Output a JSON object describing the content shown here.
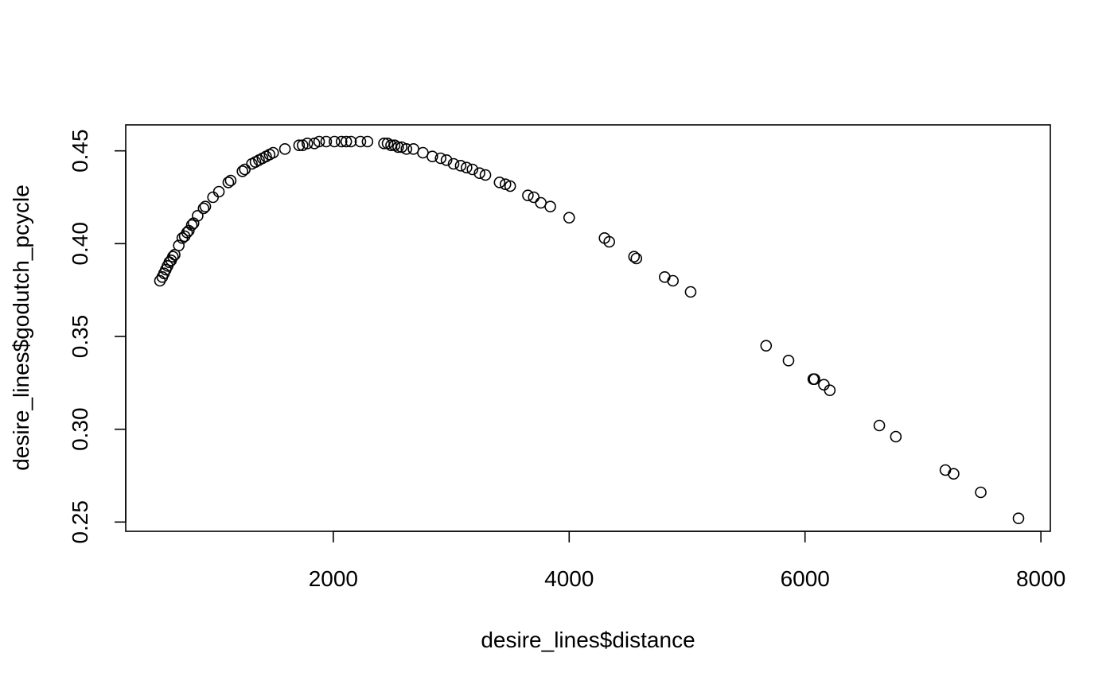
{
  "chart_data": {
    "type": "scatter",
    "title": "",
    "xlabel": "desire_lines$distance",
    "ylabel": "desire_lines$godutch_pcycle",
    "xlim": [
      240,
      8080
    ],
    "ylim": [
      0.245,
      0.464
    ],
    "x_ticks": [
      {
        "value": 2000,
        "label": "2000"
      },
      {
        "value": 4000,
        "label": "4000"
      },
      {
        "value": 6000,
        "label": "6000"
      },
      {
        "value": 8000,
        "label": "8000"
      }
    ],
    "y_ticks": [
      {
        "value": 0.25,
        "label": "0.25"
      },
      {
        "value": 0.3,
        "label": "0.30"
      },
      {
        "value": 0.35,
        "label": "0.35"
      },
      {
        "value": 0.4,
        "label": "0.40"
      },
      {
        "value": 0.45,
        "label": "0.45"
      }
    ],
    "grid": false,
    "legend": "none",
    "marker": "open-circle",
    "colors": {
      "points": "#000000",
      "axes": "#000000",
      "background": "#ffffff"
    },
    "points": [
      {
        "x": 530,
        "y": 0.38
      },
      {
        "x": 550,
        "y": 0.382
      },
      {
        "x": 565,
        "y": 0.384
      },
      {
        "x": 580,
        "y": 0.386
      },
      {
        "x": 595,
        "y": 0.388
      },
      {
        "x": 610,
        "y": 0.39
      },
      {
        "x": 625,
        "y": 0.391
      },
      {
        "x": 640,
        "y": 0.393
      },
      {
        "x": 655,
        "y": 0.394
      },
      {
        "x": 690,
        "y": 0.399
      },
      {
        "x": 720,
        "y": 0.403
      },
      {
        "x": 740,
        "y": 0.404
      },
      {
        "x": 760,
        "y": 0.406
      },
      {
        "x": 775,
        "y": 0.407
      },
      {
        "x": 800,
        "y": 0.41
      },
      {
        "x": 815,
        "y": 0.411
      },
      {
        "x": 850,
        "y": 0.415
      },
      {
        "x": 900,
        "y": 0.419
      },
      {
        "x": 915,
        "y": 0.42
      },
      {
        "x": 980,
        "y": 0.425
      },
      {
        "x": 1030,
        "y": 0.428
      },
      {
        "x": 1110,
        "y": 0.433
      },
      {
        "x": 1130,
        "y": 0.434
      },
      {
        "x": 1230,
        "y": 0.439
      },
      {
        "x": 1250,
        "y": 0.44
      },
      {
        "x": 1310,
        "y": 0.443
      },
      {
        "x": 1340,
        "y": 0.444
      },
      {
        "x": 1370,
        "y": 0.445
      },
      {
        "x": 1400,
        "y": 0.446
      },
      {
        "x": 1430,
        "y": 0.447
      },
      {
        "x": 1460,
        "y": 0.448
      },
      {
        "x": 1490,
        "y": 0.449
      },
      {
        "x": 1590,
        "y": 0.451
      },
      {
        "x": 1710,
        "y": 0.453
      },
      {
        "x": 1740,
        "y": 0.453
      },
      {
        "x": 1780,
        "y": 0.454
      },
      {
        "x": 1840,
        "y": 0.454
      },
      {
        "x": 1880,
        "y": 0.455
      },
      {
        "x": 1940,
        "y": 0.455
      },
      {
        "x": 2010,
        "y": 0.455
      },
      {
        "x": 2070,
        "y": 0.455
      },
      {
        "x": 2110,
        "y": 0.455
      },
      {
        "x": 2150,
        "y": 0.455
      },
      {
        "x": 2230,
        "y": 0.455
      },
      {
        "x": 2290,
        "y": 0.455
      },
      {
        "x": 2430,
        "y": 0.454
      },
      {
        "x": 2460,
        "y": 0.454
      },
      {
        "x": 2490,
        "y": 0.453
      },
      {
        "x": 2520,
        "y": 0.453
      },
      {
        "x": 2550,
        "y": 0.452
      },
      {
        "x": 2580,
        "y": 0.452
      },
      {
        "x": 2620,
        "y": 0.451
      },
      {
        "x": 2680,
        "y": 0.451
      },
      {
        "x": 2760,
        "y": 0.449
      },
      {
        "x": 2840,
        "y": 0.447
      },
      {
        "x": 2910,
        "y": 0.446
      },
      {
        "x": 2960,
        "y": 0.445
      },
      {
        "x": 3020,
        "y": 0.443
      },
      {
        "x": 3080,
        "y": 0.442
      },
      {
        "x": 3130,
        "y": 0.441
      },
      {
        "x": 3180,
        "y": 0.44
      },
      {
        "x": 3240,
        "y": 0.438
      },
      {
        "x": 3290,
        "y": 0.437
      },
      {
        "x": 3410,
        "y": 0.433
      },
      {
        "x": 3460,
        "y": 0.432
      },
      {
        "x": 3500,
        "y": 0.431
      },
      {
        "x": 3650,
        "y": 0.426
      },
      {
        "x": 3700,
        "y": 0.425
      },
      {
        "x": 3760,
        "y": 0.422
      },
      {
        "x": 3840,
        "y": 0.42
      },
      {
        "x": 4000,
        "y": 0.414
      },
      {
        "x": 4300,
        "y": 0.403
      },
      {
        "x": 4340,
        "y": 0.401
      },
      {
        "x": 4550,
        "y": 0.393
      },
      {
        "x": 4570,
        "y": 0.392
      },
      {
        "x": 4810,
        "y": 0.382
      },
      {
        "x": 4880,
        "y": 0.38
      },
      {
        "x": 5030,
        "y": 0.374
      },
      {
        "x": 5670,
        "y": 0.345
      },
      {
        "x": 5860,
        "y": 0.337
      },
      {
        "x": 6070,
        "y": 0.327
      },
      {
        "x": 6080,
        "y": 0.327
      },
      {
        "x": 6160,
        "y": 0.324
      },
      {
        "x": 6210,
        "y": 0.321
      },
      {
        "x": 6630,
        "y": 0.302
      },
      {
        "x": 6770,
        "y": 0.296
      },
      {
        "x": 7190,
        "y": 0.278
      },
      {
        "x": 7260,
        "y": 0.276
      },
      {
        "x": 7490,
        "y": 0.266
      },
      {
        "x": 7810,
        "y": 0.252
      }
    ]
  }
}
